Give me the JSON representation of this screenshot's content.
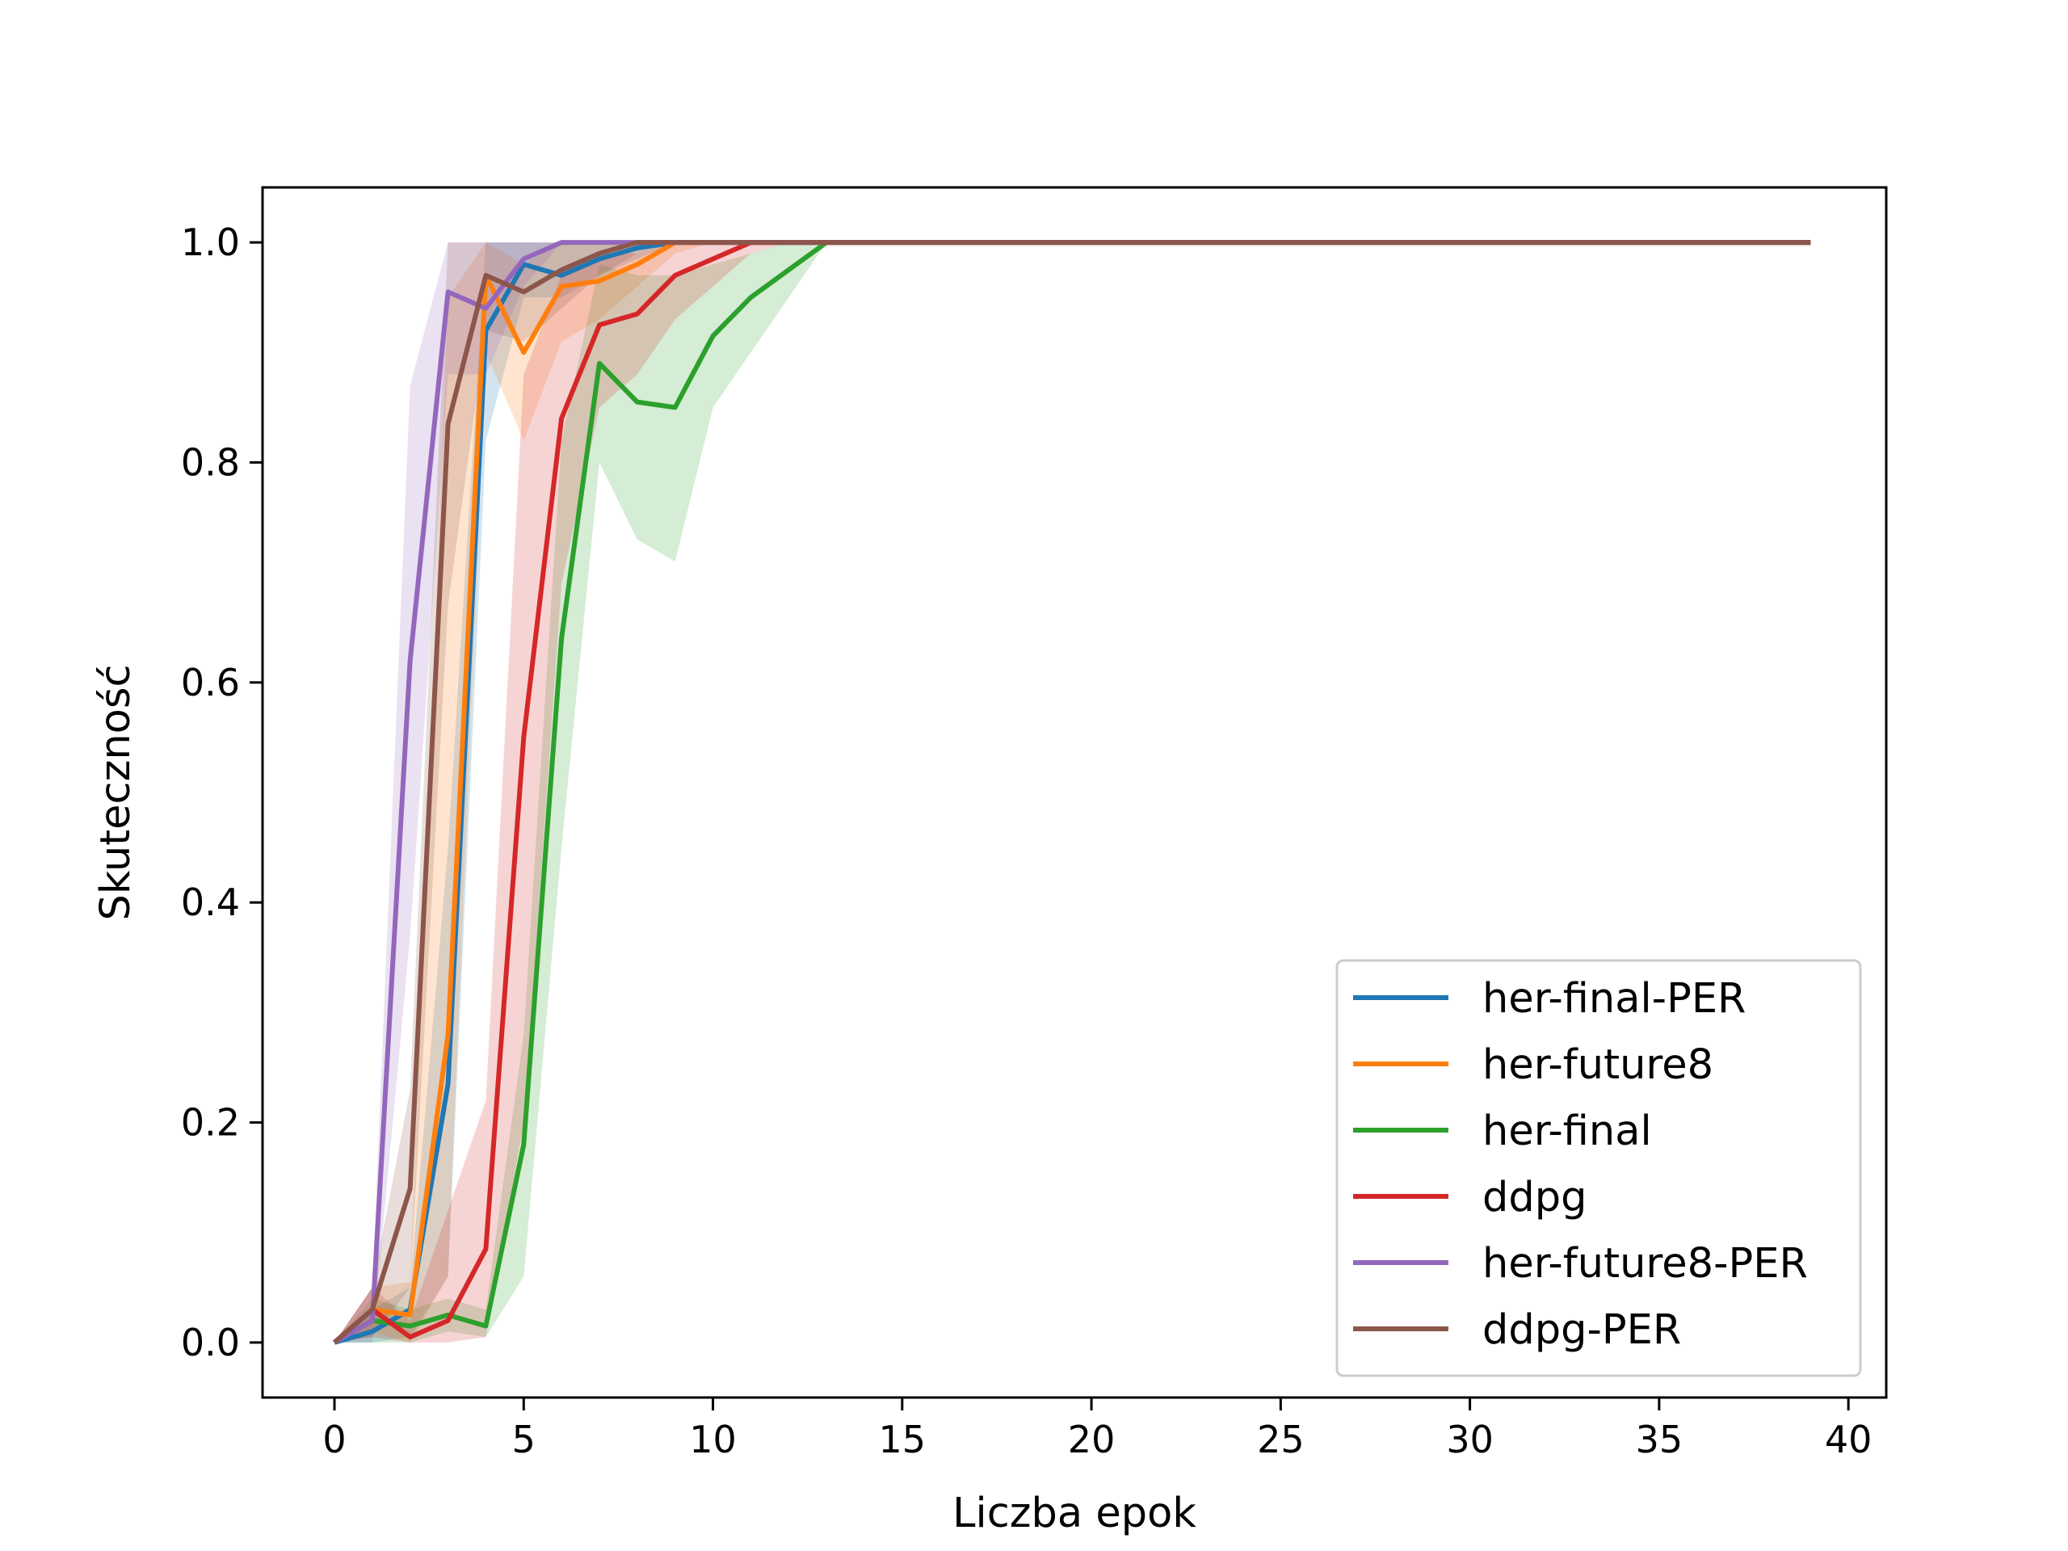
{
  "chart_data": {
    "type": "line",
    "title": "",
    "xlabel": "Liczba epok",
    "ylabel": "Skuteczność",
    "xlim": [
      -1.9,
      41.0
    ],
    "ylim": [
      -0.05,
      1.05
    ],
    "xticks": [
      "0",
      "5",
      "10",
      "15",
      "20",
      "25",
      "30",
      "35",
      "40"
    ],
    "yticks": [
      "0.0",
      "0.2",
      "0.4",
      "0.6",
      "0.8",
      "1.0"
    ],
    "grid": false,
    "legend_position": "lower-right",
    "x": [
      0,
      1,
      2,
      3,
      4,
      5,
      6,
      7,
      8,
      9,
      10,
      11,
      12,
      13,
      14,
      15,
      16,
      17,
      18,
      19,
      20,
      21,
      22,
      23,
      24,
      25,
      26,
      27,
      28,
      29,
      30,
      31,
      32,
      33,
      34,
      35,
      36,
      37,
      38,
      39
    ],
    "series": [
      {
        "name": "her-final-PER",
        "color": "#1f77b4",
        "values": [
          0.0,
          0.01,
          0.03,
          0.235,
          0.92,
          0.98,
          0.97,
          0.985,
          0.995,
          1,
          1,
          1,
          1,
          1,
          1,
          1,
          1,
          1,
          1,
          1,
          1,
          1,
          1,
          1,
          1,
          1,
          1,
          1,
          1,
          1,
          1,
          1,
          1,
          1,
          1,
          1,
          1,
          1,
          1,
          1
        ],
        "lower": [
          0.0,
          0.0,
          0.005,
          0.06,
          0.82,
          0.95,
          0.95,
          0.97,
          0.985,
          1,
          1,
          1,
          1,
          1,
          1,
          1,
          1,
          1,
          1,
          1,
          1,
          1,
          1,
          1,
          1,
          1,
          1,
          1,
          1,
          1,
          1,
          1,
          1,
          1,
          1,
          1,
          1,
          1,
          1,
          1
        ],
        "upper": [
          0.0,
          0.03,
          0.05,
          0.45,
          1.0,
          1,
          1,
          1,
          1,
          1,
          1,
          1,
          1,
          1,
          1,
          1,
          1,
          1,
          1,
          1,
          1,
          1,
          1,
          1,
          1,
          1,
          1,
          1,
          1,
          1,
          1,
          1,
          1,
          1,
          1,
          1,
          1,
          1,
          1,
          1
        ]
      },
      {
        "name": "her-future8",
        "color": "#ff7f0e",
        "values": [
          0.0,
          0.03,
          0.025,
          0.28,
          0.97,
          0.9,
          0.96,
          0.965,
          0.98,
          1,
          1,
          1,
          1,
          1,
          1,
          1,
          1,
          1,
          1,
          1,
          1,
          1,
          1,
          1,
          1,
          1,
          1,
          1,
          1,
          1,
          1,
          1,
          1,
          1,
          1,
          1,
          1,
          1,
          1,
          1
        ],
        "lower": [
          0.0,
          0.01,
          0.0,
          0.06,
          0.9,
          0.82,
          0.91,
          0.93,
          0.96,
          0.99,
          1,
          1,
          1,
          1,
          1,
          1,
          1,
          1,
          1,
          1,
          1,
          1,
          1,
          1,
          1,
          1,
          1,
          1,
          1,
          1,
          1,
          1,
          1,
          1,
          1,
          1,
          1,
          1,
          1,
          1
        ],
        "upper": [
          0.0,
          0.05,
          0.055,
          0.95,
          1.0,
          0.98,
          1.0,
          1.0,
          1.0,
          1,
          1,
          1,
          1,
          1,
          1,
          1,
          1,
          1,
          1,
          1,
          1,
          1,
          1,
          1,
          1,
          1,
          1,
          1,
          1,
          1,
          1,
          1,
          1,
          1,
          1,
          1,
          1,
          1,
          1,
          1
        ]
      },
      {
        "name": "her-final",
        "color": "#2ca02c",
        "values": [
          0.0,
          0.02,
          0.015,
          0.025,
          0.015,
          0.18,
          0.64,
          0.89,
          0.855,
          0.85,
          0.915,
          0.95,
          0.975,
          1,
          1,
          1,
          1,
          1,
          1,
          1,
          1,
          1,
          1,
          1,
          1,
          1,
          1,
          1,
          1,
          1,
          1,
          1,
          1,
          1,
          1,
          1,
          1,
          1,
          1,
          1
        ],
        "lower": [
          0.0,
          0.0,
          0.0,
          0.01,
          0.005,
          0.06,
          0.45,
          0.8,
          0.73,
          0.71,
          0.85,
          0.9,
          0.95,
          1,
          1,
          1,
          1,
          1,
          1,
          1,
          1,
          1,
          1,
          1,
          1,
          1,
          1,
          1,
          1,
          1,
          1,
          1,
          1,
          1,
          1,
          1,
          1,
          1,
          1,
          1
        ],
        "upper": [
          0.0,
          0.04,
          0.03,
          0.04,
          0.03,
          0.28,
          0.82,
          0.98,
          0.97,
          0.97,
          0.98,
          0.99,
          1.0,
          1,
          1,
          1,
          1,
          1,
          1,
          1,
          1,
          1,
          1,
          1,
          1,
          1,
          1,
          1,
          1,
          1,
          1,
          1,
          1,
          1,
          1,
          1,
          1,
          1,
          1,
          1
        ]
      },
      {
        "name": "ddpg",
        "color": "#d62728",
        "values": [
          0.0,
          0.03,
          0.005,
          0.02,
          0.085,
          0.55,
          0.84,
          0.925,
          0.935,
          0.97,
          0.985,
          1,
          1,
          1,
          1,
          1,
          1,
          1,
          1,
          1,
          1,
          1,
          1,
          1,
          1,
          1,
          1,
          1,
          1,
          1,
          1,
          1,
          1,
          1,
          1,
          1,
          1,
          1,
          1,
          1
        ],
        "lower": [
          0.0,
          0.005,
          0.0,
          0.0,
          0.005,
          0.2,
          0.69,
          0.85,
          0.88,
          0.93,
          0.96,
          0.99,
          1,
          1,
          1,
          1,
          1,
          1,
          1,
          1,
          1,
          1,
          1,
          1,
          1,
          1,
          1,
          1,
          1,
          1,
          1,
          1,
          1,
          1,
          1,
          1,
          1,
          1,
          1,
          1
        ],
        "upper": [
          0.0,
          0.05,
          0.02,
          0.12,
          0.22,
          0.88,
          0.97,
          0.99,
          0.99,
          1.0,
          1.0,
          1,
          1,
          1,
          1,
          1,
          1,
          1,
          1,
          1,
          1,
          1,
          1,
          1,
          1,
          1,
          1,
          1,
          1,
          1,
          1,
          1,
          1,
          1,
          1,
          1,
          1,
          1,
          1,
          1
        ]
      },
      {
        "name": "her-future8-PER",
        "color": "#9467bd",
        "values": [
          0.0,
          0.02,
          0.62,
          0.955,
          0.94,
          0.985,
          1,
          1,
          1,
          1,
          1,
          1,
          1,
          1,
          1,
          1,
          1,
          1,
          1,
          1,
          1,
          1,
          1,
          1,
          1,
          1,
          1,
          1,
          1,
          1,
          1,
          1,
          1,
          1,
          1,
          1,
          1,
          1,
          1,
          1
        ],
        "lower": [
          0.0,
          0.0,
          0.37,
          0.88,
          0.88,
          0.96,
          1,
          1,
          1,
          1,
          1,
          1,
          1,
          1,
          1,
          1,
          1,
          1,
          1,
          1,
          1,
          1,
          1,
          1,
          1,
          1,
          1,
          1,
          1,
          1,
          1,
          1,
          1,
          1,
          1,
          1,
          1,
          1,
          1,
          1
        ],
        "upper": [
          0.0,
          0.05,
          0.87,
          1.0,
          1.0,
          1.0,
          1,
          1,
          1,
          1,
          1,
          1,
          1,
          1,
          1,
          1,
          1,
          1,
          1,
          1,
          1,
          1,
          1,
          1,
          1,
          1,
          1,
          1,
          1,
          1,
          1,
          1,
          1,
          1,
          1,
          1,
          1,
          1,
          1,
          1
        ]
      },
      {
        "name": "ddpg-PER",
        "color": "#8c564b",
        "values": [
          0.0,
          0.03,
          0.14,
          0.835,
          0.97,
          0.955,
          0.975,
          0.99,
          1,
          1,
          1,
          1,
          1,
          1,
          1,
          1,
          1,
          1,
          1,
          1,
          1,
          1,
          1,
          1,
          1,
          1,
          1,
          1,
          1,
          1,
          1,
          1,
          1,
          1,
          1,
          1,
          1,
          1,
          1,
          1
        ],
        "lower": [
          0.0,
          0.005,
          0.05,
          0.67,
          0.92,
          0.91,
          0.94,
          0.97,
          0.99,
          1,
          1,
          1,
          1,
          1,
          1,
          1,
          1,
          1,
          1,
          1,
          1,
          1,
          1,
          1,
          1,
          1,
          1,
          1,
          1,
          1,
          1,
          1,
          1,
          1,
          1,
          1,
          1,
          1,
          1,
          1
        ],
        "upper": [
          0.0,
          0.05,
          0.23,
          1.0,
          1.0,
          1.0,
          1.0,
          1.0,
          1,
          1,
          1,
          1,
          1,
          1,
          1,
          1,
          1,
          1,
          1,
          1,
          1,
          1,
          1,
          1,
          1,
          1,
          1,
          1,
          1,
          1,
          1,
          1,
          1,
          1,
          1,
          1,
          1,
          1,
          1,
          1
        ]
      }
    ]
  }
}
